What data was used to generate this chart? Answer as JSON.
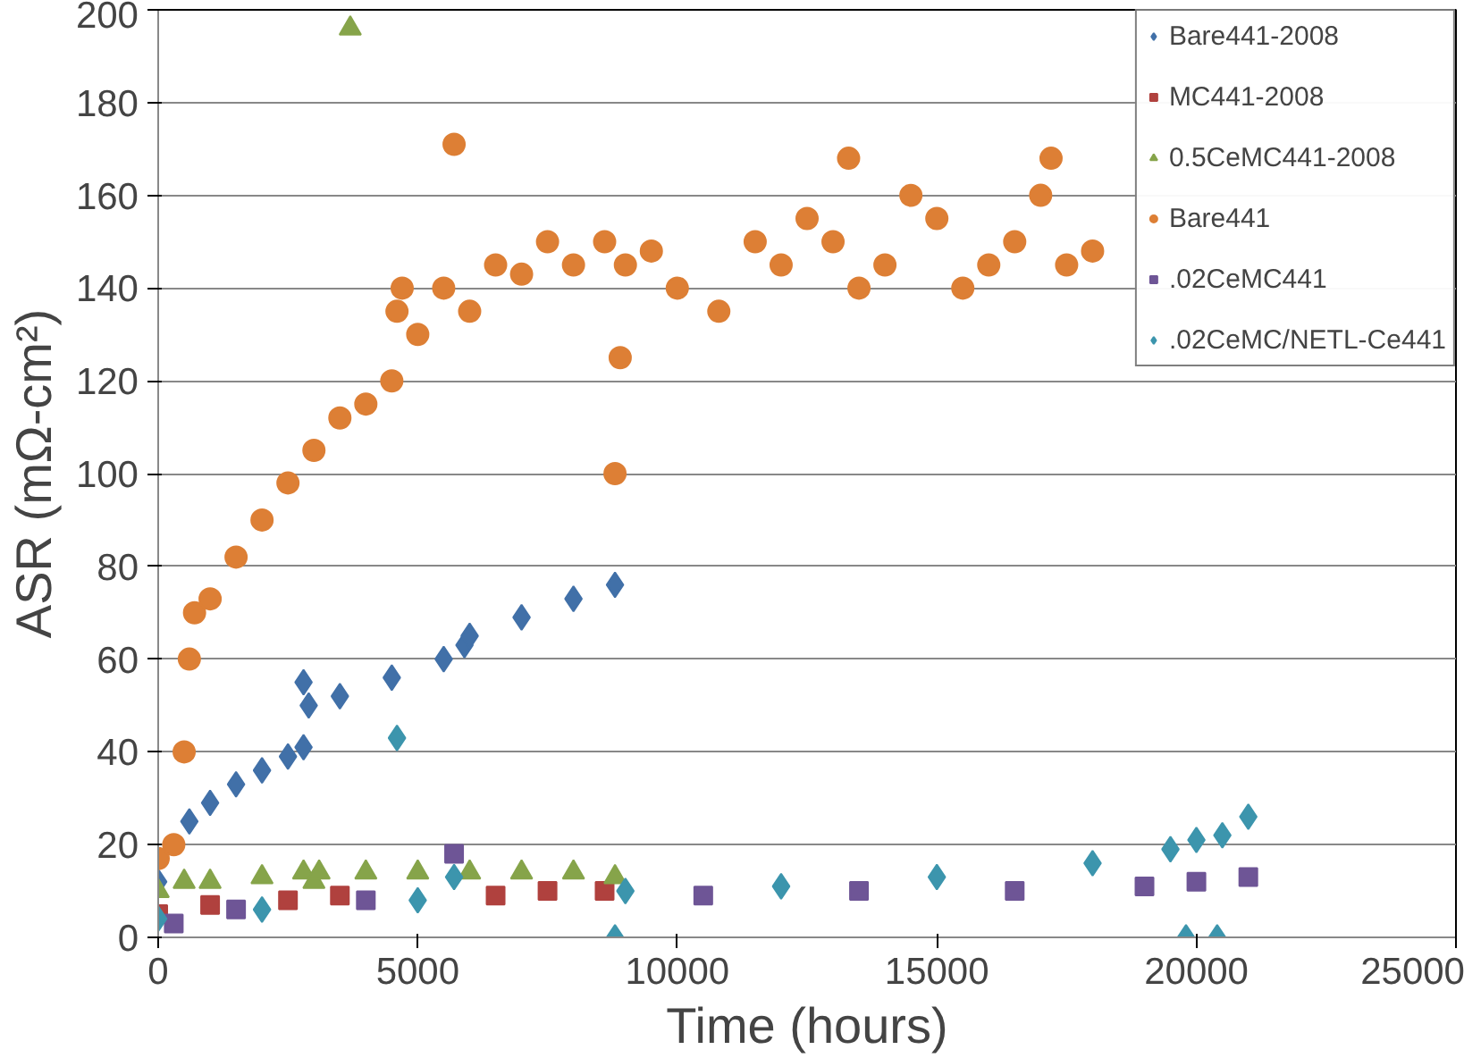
{
  "chart_data": {
    "type": "scatter",
    "xlabel": "Time (hours)",
    "ylabel": "ASR (mΩ-cm²)",
    "xlim": [
      0,
      25000
    ],
    "xticks": [
      0,
      5000,
      10000,
      15000,
      20000,
      25000
    ],
    "ylim": [
      0,
      200
    ],
    "yticks": [
      0,
      20,
      40,
      60,
      80,
      100,
      120,
      140,
      160,
      180,
      200
    ],
    "grid": "y",
    "legend": "top right",
    "series": [
      {
        "name": "Bare441-2008",
        "color": "#4170a8",
        "marker": "diamond",
        "x": [
          0,
          600,
          1000,
          1500,
          2000,
          2500,
          2800,
          2800,
          2900,
          3500,
          4500,
          5500,
          5900,
          6000,
          7000,
          8000,
          8800
        ],
        "values": [
          12,
          25,
          29,
          33,
          36,
          39,
          41,
          55,
          50,
          52,
          56,
          60,
          63,
          65,
          69,
          73,
          76
        ]
      },
      {
        "name": "MC441-2008",
        "color": "#b0413e",
        "marker": "square",
        "x": [
          0,
          1000,
          2500,
          3500,
          6500,
          7500,
          8600
        ],
        "values": [
          5,
          7,
          8,
          9,
          9,
          10,
          10
        ]
      },
      {
        "name": "0.5CeMC441-2008",
        "color": "#86a44a",
        "marker": "triangle",
        "x": [
          0,
          500,
          1000,
          2000,
          2800,
          3000,
          3100,
          3700,
          4000,
          5000,
          6000,
          7000,
          8000,
          8800
        ],
        "values": [
          10,
          12,
          12,
          13,
          14,
          12,
          14,
          196,
          14,
          14,
          14,
          14,
          14,
          13
        ]
      },
      {
        "name": "Bare441",
        "color": "#dd7f35",
        "marker": "circle",
        "x": [
          0,
          300,
          500,
          600,
          700,
          1000,
          1500,
          2000,
          2500,
          3000,
          3500,
          4000,
          4500,
          4600,
          4700,
          5000,
          5500,
          5700,
          6000,
          6500,
          7000,
          7500,
          8000,
          8600,
          8800,
          8900,
          9000,
          9500,
          10000,
          10800,
          11500,
          12000,
          12500,
          13000,
          13300,
          13500,
          14000,
          14500,
          15000,
          15500,
          16000,
          16500,
          17000,
          17200,
          17500,
          18000
        ],
        "values": [
          17,
          20,
          40,
          60,
          70,
          73,
          82,
          90,
          98,
          105,
          112,
          115,
          120,
          135,
          140,
          130,
          140,
          171,
          135,
          145,
          143,
          150,
          145,
          150,
          100,
          125,
          145,
          148,
          140,
          135,
          150,
          145,
          155,
          150,
          168,
          140,
          145,
          160,
          155,
          140,
          145,
          150,
          160,
          168,
          145,
          148
        ]
      },
      {
        "name": ".02CeMC441",
        "color": "#6e5596",
        "marker": "square",
        "x": [
          300,
          1500,
          4000,
          5700,
          10500,
          13500,
          16500,
          19000,
          20000,
          21000
        ],
        "values": [
          3,
          6,
          8,
          18,
          9,
          10,
          10,
          11,
          12,
          13
        ]
      },
      {
        "name": ".02CeMC/NETL-Ce441",
        "color": "#3c95ad",
        "marker": "diamond",
        "x": [
          0,
          2000,
          4600,
          5000,
          5700,
          8800,
          9000,
          12000,
          15000,
          18000,
          19500,
          19800,
          20000,
          20400,
          20500,
          21000
        ],
        "values": [
          4,
          6,
          43,
          8,
          13,
          0,
          10,
          11,
          13,
          16,
          19,
          0,
          21,
          0,
          22,
          26
        ]
      }
    ]
  }
}
